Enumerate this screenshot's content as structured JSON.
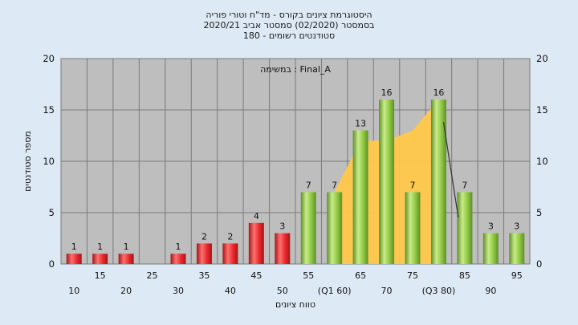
{
  "chart_data": {
    "type": "bar",
    "title_lines": [
      "היסטוגרמת ציונים בקורס - מד\"ח וטורי פוריה",
      "בסמסטר  (02/2020)  סמסטר אביב 2020/21",
      "סטודנטים רשומים - 180"
    ],
    "annotation": "במשימה : Final_A",
    "xlabel": "טווח ציונים",
    "ylabel": "מספר סטודנטים",
    "ylim": [
      0,
      20
    ],
    "y_ticks": [
      0,
      5,
      10,
      15,
      20
    ],
    "grid": true,
    "categories": [
      "10",
      "15",
      "20",
      "25",
      "30",
      "35",
      "40",
      "45",
      "50",
      "55",
      "(Q1 60)",
      "65",
      "70",
      "75",
      "(Q3 80)",
      "85",
      "90",
      "95"
    ],
    "values": [
      1,
      1,
      1,
      0,
      1,
      2,
      2,
      4,
      3,
      7,
      7,
      13,
      16,
      7,
      16,
      7,
      3,
      3
    ],
    "data_labels": [
      "1",
      "1",
      "1",
      "",
      "1",
      "2",
      "2",
      "4",
      "3",
      "7",
      "7",
      "13",
      "16",
      "7",
      "16",
      "7",
      "3",
      "3"
    ],
    "bar_groups": [
      "fail",
      "fail",
      "fail",
      "fail",
      "fail",
      "fail",
      "fail",
      "fail",
      "fail",
      "pass",
      "pass",
      "pass",
      "pass",
      "pass",
      "pass",
      "pass",
      "pass",
      "pass"
    ],
    "iqr_area_values": [
      7,
      12,
      12,
      13,
      16
    ],
    "iqr_area_start_index": 10,
    "colors": {
      "background": "#dde9f5",
      "plot_bg": "#bebebe",
      "fail_bar": "#e8262b",
      "pass_bar": "#8cc63e",
      "area": "#ffc84a",
      "grid": "#7a7a7a",
      "line": "#333333"
    }
  }
}
